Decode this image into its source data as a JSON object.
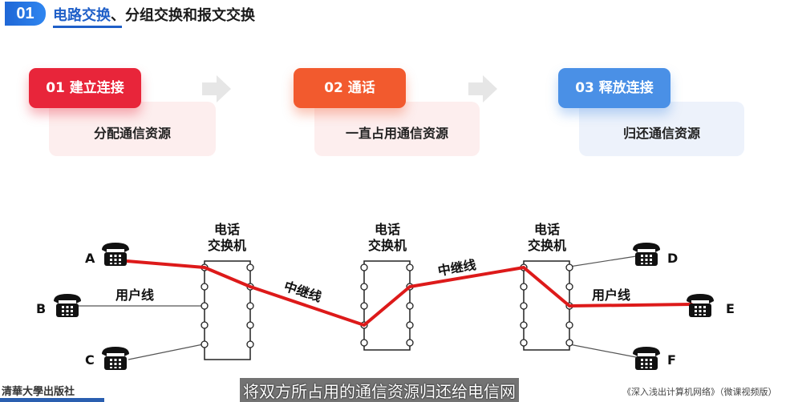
{
  "header": {
    "badge": "01",
    "title_highlight": "电路交换",
    "title_rest": "、分组交换和报文交换"
  },
  "steps": [
    {
      "label": "01 建立连接",
      "desc": "分配通信资源",
      "color": "#e8253a",
      "card_color": "#fdeeee"
    },
    {
      "label": "02 通话",
      "desc": "一直占用通信资源",
      "color": "#f25a2e",
      "card_color": "#fdeeee"
    },
    {
      "label": "03 释放连接",
      "desc": "归还通信资源",
      "color": "#4a90e6",
      "card_color": "#edf2fb"
    }
  ],
  "diagram": {
    "switch_label_line1": "电话",
    "switch_label_line2": "交换机",
    "phones": {
      "a": "A",
      "b": "B",
      "c": "C",
      "d": "D",
      "e": "E",
      "f": "F"
    },
    "user_line_label": "用户线",
    "trunk_label": "中继线",
    "circuit_color": "#dd1a1a"
  },
  "footer": {
    "publisher_logo": "清華大學出版社",
    "subtitle": "将双方所占用的通信资源归还给电信网",
    "course": "《深入浅出计算机网络》（微课视频版）"
  }
}
